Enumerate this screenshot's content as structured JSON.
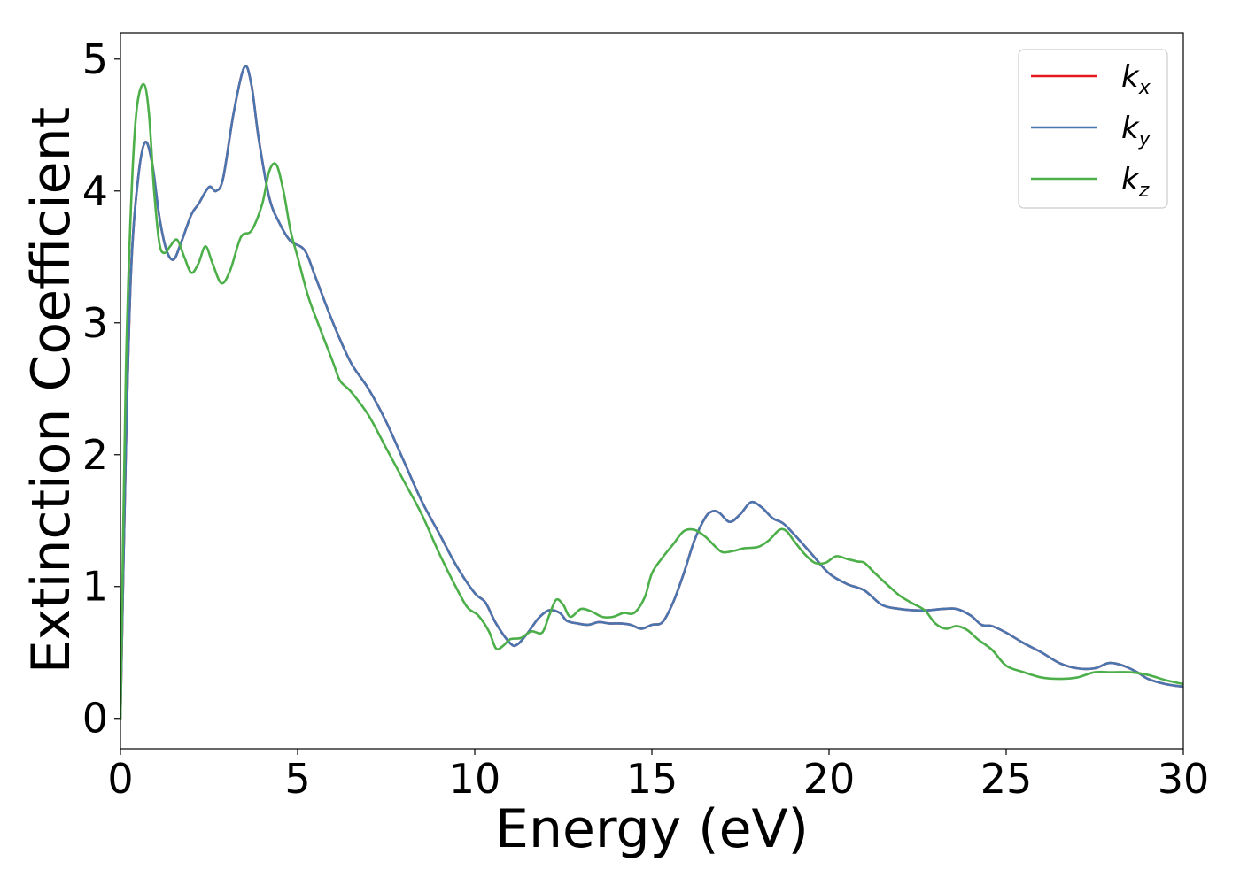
{
  "chart_data": {
    "type": "line",
    "xlabel": "Energy (eV)",
    "ylabel": "Extinction Coefficient",
    "xlim": [
      0,
      30
    ],
    "ylim": [
      -0.23,
      5.2
    ],
    "x_ticks": [
      "0",
      "5",
      "10",
      "15",
      "20",
      "25",
      "30"
    ],
    "y_ticks": [
      "0",
      "1",
      "2",
      "3",
      "4",
      "5"
    ],
    "grid": false,
    "legend_position": "top-right",
    "series": [
      {
        "name": "k",
        "subscript": "x",
        "color": "#e41a1c",
        "points": [
          [
            0,
            0
          ],
          [
            0.15,
            2.0
          ],
          [
            0.3,
            3.4
          ],
          [
            0.5,
            4.1
          ],
          [
            0.7,
            4.37
          ],
          [
            0.9,
            4.2
          ],
          [
            1.1,
            3.8
          ],
          [
            1.3,
            3.55
          ],
          [
            1.5,
            3.48
          ],
          [
            1.7,
            3.6
          ],
          [
            2.0,
            3.82
          ],
          [
            2.2,
            3.9
          ],
          [
            2.5,
            4.03
          ],
          [
            2.7,
            4.0
          ],
          [
            2.9,
            4.1
          ],
          [
            3.2,
            4.6
          ],
          [
            3.5,
            4.94
          ],
          [
            3.7,
            4.8
          ],
          [
            3.9,
            4.4
          ],
          [
            4.2,
            3.95
          ],
          [
            4.5,
            3.75
          ],
          [
            4.8,
            3.62
          ],
          [
            5.2,
            3.55
          ],
          [
            5.5,
            3.35
          ],
          [
            6.0,
            3.0
          ],
          [
            6.5,
            2.7
          ],
          [
            7.0,
            2.5
          ],
          [
            7.5,
            2.25
          ],
          [
            8.0,
            1.95
          ],
          [
            8.5,
            1.65
          ],
          [
            9.0,
            1.4
          ],
          [
            9.5,
            1.15
          ],
          [
            10.0,
            0.95
          ],
          [
            10.3,
            0.88
          ],
          [
            10.6,
            0.72
          ],
          [
            11.0,
            0.57
          ],
          [
            11.2,
            0.56
          ],
          [
            11.5,
            0.65
          ],
          [
            11.8,
            0.76
          ],
          [
            12.1,
            0.82
          ],
          [
            12.4,
            0.8
          ],
          [
            12.6,
            0.74
          ],
          [
            12.9,
            0.72
          ],
          [
            13.2,
            0.71
          ],
          [
            13.5,
            0.73
          ],
          [
            13.8,
            0.72
          ],
          [
            14.1,
            0.72
          ],
          [
            14.4,
            0.71
          ],
          [
            14.7,
            0.68
          ],
          [
            15.0,
            0.71
          ],
          [
            15.3,
            0.73
          ],
          [
            15.6,
            0.88
          ],
          [
            15.9,
            1.1
          ],
          [
            16.2,
            1.35
          ],
          [
            16.5,
            1.52
          ],
          [
            16.7,
            1.57
          ],
          [
            16.9,
            1.56
          ],
          [
            17.2,
            1.49
          ],
          [
            17.5,
            1.55
          ],
          [
            17.8,
            1.64
          ],
          [
            18.1,
            1.6
          ],
          [
            18.4,
            1.52
          ],
          [
            18.7,
            1.48
          ],
          [
            19.0,
            1.4
          ],
          [
            19.5,
            1.25
          ],
          [
            20.0,
            1.1
          ],
          [
            20.5,
            1.02
          ],
          [
            21.0,
            0.97
          ],
          [
            21.5,
            0.86
          ],
          [
            22.0,
            0.83
          ],
          [
            22.4,
            0.82
          ],
          [
            22.8,
            0.82
          ],
          [
            23.2,
            0.83
          ],
          [
            23.6,
            0.83
          ],
          [
            24.0,
            0.78
          ],
          [
            24.3,
            0.71
          ],
          [
            24.6,
            0.7
          ],
          [
            25.0,
            0.65
          ],
          [
            25.5,
            0.57
          ],
          [
            26.0,
            0.5
          ],
          [
            26.5,
            0.42
          ],
          [
            27.0,
            0.38
          ],
          [
            27.5,
            0.38
          ],
          [
            27.9,
            0.42
          ],
          [
            28.3,
            0.4
          ],
          [
            28.7,
            0.35
          ],
          [
            29.0,
            0.3
          ],
          [
            29.5,
            0.26
          ],
          [
            30.0,
            0.24
          ]
        ]
      },
      {
        "name": "k",
        "subscript": "y",
        "color": "#4a76b0",
        "points": [
          [
            0,
            0
          ],
          [
            0.15,
            2.0
          ],
          [
            0.3,
            3.4
          ],
          [
            0.5,
            4.1
          ],
          [
            0.7,
            4.37
          ],
          [
            0.9,
            4.2
          ],
          [
            1.1,
            3.8
          ],
          [
            1.3,
            3.55
          ],
          [
            1.5,
            3.48
          ],
          [
            1.7,
            3.6
          ],
          [
            2.0,
            3.82
          ],
          [
            2.2,
            3.9
          ],
          [
            2.5,
            4.03
          ],
          [
            2.7,
            4.0
          ],
          [
            2.9,
            4.1
          ],
          [
            3.2,
            4.6
          ],
          [
            3.5,
            4.94
          ],
          [
            3.7,
            4.8
          ],
          [
            3.9,
            4.4
          ],
          [
            4.2,
            3.95
          ],
          [
            4.5,
            3.75
          ],
          [
            4.8,
            3.62
          ],
          [
            5.2,
            3.55
          ],
          [
            5.5,
            3.35
          ],
          [
            6.0,
            3.0
          ],
          [
            6.5,
            2.7
          ],
          [
            7.0,
            2.5
          ],
          [
            7.5,
            2.25
          ],
          [
            8.0,
            1.95
          ],
          [
            8.5,
            1.65
          ],
          [
            9.0,
            1.4
          ],
          [
            9.5,
            1.15
          ],
          [
            10.0,
            0.95
          ],
          [
            10.3,
            0.88
          ],
          [
            10.6,
            0.72
          ],
          [
            11.0,
            0.57
          ],
          [
            11.2,
            0.56
          ],
          [
            11.5,
            0.65
          ],
          [
            11.8,
            0.76
          ],
          [
            12.1,
            0.82
          ],
          [
            12.4,
            0.8
          ],
          [
            12.6,
            0.74
          ],
          [
            12.9,
            0.72
          ],
          [
            13.2,
            0.71
          ],
          [
            13.5,
            0.73
          ],
          [
            13.8,
            0.72
          ],
          [
            14.1,
            0.72
          ],
          [
            14.4,
            0.71
          ],
          [
            14.7,
            0.68
          ],
          [
            15.0,
            0.71
          ],
          [
            15.3,
            0.73
          ],
          [
            15.6,
            0.88
          ],
          [
            15.9,
            1.1
          ],
          [
            16.2,
            1.35
          ],
          [
            16.5,
            1.52
          ],
          [
            16.7,
            1.57
          ],
          [
            16.9,
            1.56
          ],
          [
            17.2,
            1.49
          ],
          [
            17.5,
            1.55
          ],
          [
            17.8,
            1.64
          ],
          [
            18.1,
            1.6
          ],
          [
            18.4,
            1.52
          ],
          [
            18.7,
            1.48
          ],
          [
            19.0,
            1.4
          ],
          [
            19.5,
            1.25
          ],
          [
            20.0,
            1.1
          ],
          [
            20.5,
            1.02
          ],
          [
            21.0,
            0.97
          ],
          [
            21.5,
            0.86
          ],
          [
            22.0,
            0.83
          ],
          [
            22.4,
            0.82
          ],
          [
            22.8,
            0.82
          ],
          [
            23.2,
            0.83
          ],
          [
            23.6,
            0.83
          ],
          [
            24.0,
            0.78
          ],
          [
            24.3,
            0.71
          ],
          [
            24.6,
            0.7
          ],
          [
            25.0,
            0.65
          ],
          [
            25.5,
            0.57
          ],
          [
            26.0,
            0.5
          ],
          [
            26.5,
            0.42
          ],
          [
            27.0,
            0.38
          ],
          [
            27.5,
            0.38
          ],
          [
            27.9,
            0.42
          ],
          [
            28.3,
            0.4
          ],
          [
            28.7,
            0.35
          ],
          [
            29.0,
            0.3
          ],
          [
            29.5,
            0.26
          ],
          [
            30.0,
            0.24
          ]
        ]
      },
      {
        "name": "k",
        "subscript": "z",
        "color": "#4daf4a",
        "points": [
          [
            0,
            0
          ],
          [
            0.15,
            2.6
          ],
          [
            0.3,
            3.9
          ],
          [
            0.45,
            4.6
          ],
          [
            0.65,
            4.81
          ],
          [
            0.8,
            4.6
          ],
          [
            0.95,
            4.0
          ],
          [
            1.1,
            3.6
          ],
          [
            1.25,
            3.53
          ],
          [
            1.4,
            3.58
          ],
          [
            1.6,
            3.63
          ],
          [
            1.8,
            3.5
          ],
          [
            2.0,
            3.38
          ],
          [
            2.2,
            3.45
          ],
          [
            2.4,
            3.58
          ],
          [
            2.6,
            3.45
          ],
          [
            2.85,
            3.3
          ],
          [
            3.1,
            3.4
          ],
          [
            3.4,
            3.65
          ],
          [
            3.7,
            3.7
          ],
          [
            4.0,
            3.9
          ],
          [
            4.2,
            4.15
          ],
          [
            4.4,
            4.2
          ],
          [
            4.6,
            4.0
          ],
          [
            4.8,
            3.7
          ],
          [
            5.0,
            3.5
          ],
          [
            5.3,
            3.2
          ],
          [
            5.6,
            2.98
          ],
          [
            6.0,
            2.7
          ],
          [
            6.2,
            2.56
          ],
          [
            6.5,
            2.48
          ],
          [
            7.0,
            2.3
          ],
          [
            7.5,
            2.05
          ],
          [
            8.0,
            1.8
          ],
          [
            8.5,
            1.55
          ],
          [
            9.0,
            1.25
          ],
          [
            9.5,
            0.98
          ],
          [
            9.8,
            0.84
          ],
          [
            10.1,
            0.78
          ],
          [
            10.4,
            0.66
          ],
          [
            10.6,
            0.53
          ],
          [
            10.8,
            0.55
          ],
          [
            11.0,
            0.6
          ],
          [
            11.3,
            0.61
          ],
          [
            11.6,
            0.66
          ],
          [
            11.9,
            0.65
          ],
          [
            12.1,
            0.78
          ],
          [
            12.3,
            0.9
          ],
          [
            12.5,
            0.86
          ],
          [
            12.7,
            0.77
          ],
          [
            13.0,
            0.83
          ],
          [
            13.3,
            0.81
          ],
          [
            13.6,
            0.77
          ],
          [
            13.9,
            0.77
          ],
          [
            14.2,
            0.8
          ],
          [
            14.5,
            0.8
          ],
          [
            14.8,
            0.92
          ],
          [
            15.0,
            1.1
          ],
          [
            15.3,
            1.22
          ],
          [
            15.6,
            1.32
          ],
          [
            15.9,
            1.42
          ],
          [
            16.2,
            1.43
          ],
          [
            16.5,
            1.38
          ],
          [
            16.8,
            1.3
          ],
          [
            17.0,
            1.26
          ],
          [
            17.3,
            1.27
          ],
          [
            17.6,
            1.29
          ],
          [
            18.0,
            1.3
          ],
          [
            18.3,
            1.35
          ],
          [
            18.6,
            1.43
          ],
          [
            18.8,
            1.42
          ],
          [
            19.0,
            1.35
          ],
          [
            19.3,
            1.25
          ],
          [
            19.6,
            1.18
          ],
          [
            19.9,
            1.18
          ],
          [
            20.2,
            1.23
          ],
          [
            20.5,
            1.21
          ],
          [
            20.8,
            1.19
          ],
          [
            21.0,
            1.18
          ],
          [
            21.3,
            1.1
          ],
          [
            21.7,
            1.0
          ],
          [
            22.0,
            0.93
          ],
          [
            22.3,
            0.88
          ],
          [
            22.7,
            0.82
          ],
          [
            23.0,
            0.72
          ],
          [
            23.3,
            0.68
          ],
          [
            23.6,
            0.7
          ],
          [
            23.9,
            0.67
          ],
          [
            24.2,
            0.6
          ],
          [
            24.6,
            0.52
          ],
          [
            25.0,
            0.4
          ],
          [
            25.5,
            0.35
          ],
          [
            26.0,
            0.31
          ],
          [
            26.5,
            0.3
          ],
          [
            27.0,
            0.31
          ],
          [
            27.5,
            0.35
          ],
          [
            28.0,
            0.35
          ],
          [
            28.5,
            0.35
          ],
          [
            29.0,
            0.33
          ],
          [
            29.5,
            0.29
          ],
          [
            30.0,
            0.26
          ]
        ]
      }
    ]
  }
}
